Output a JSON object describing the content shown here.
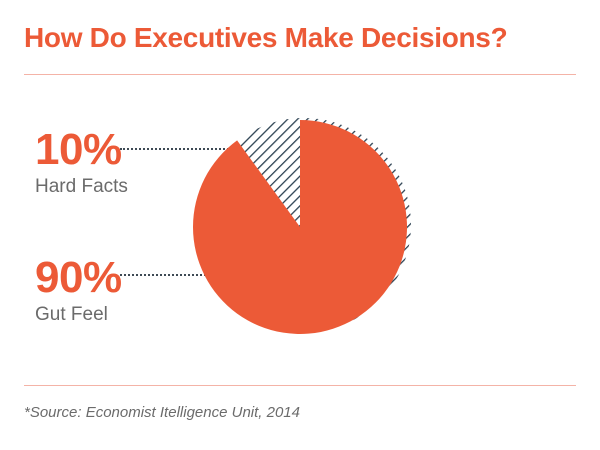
{
  "title": "How Do Executives Make Decisions?",
  "source": "*Source: Economist Itelligence Unit, 2014",
  "colors": {
    "accent": "#ec5a37",
    "hatch": "#2c4152",
    "rule": "#f4b3a7",
    "label_text": "#6b6b6b"
  },
  "chart_data": {
    "type": "pie",
    "title": "How Do Executives Make Decisions?",
    "slices": [
      {
        "label": "Hard Facts",
        "value": 10,
        "display": "10%",
        "style": "hatched"
      },
      {
        "label": "Gut Feel",
        "value": 90,
        "display": "90%",
        "style": "solid"
      }
    ],
    "legend_placement": "left"
  }
}
